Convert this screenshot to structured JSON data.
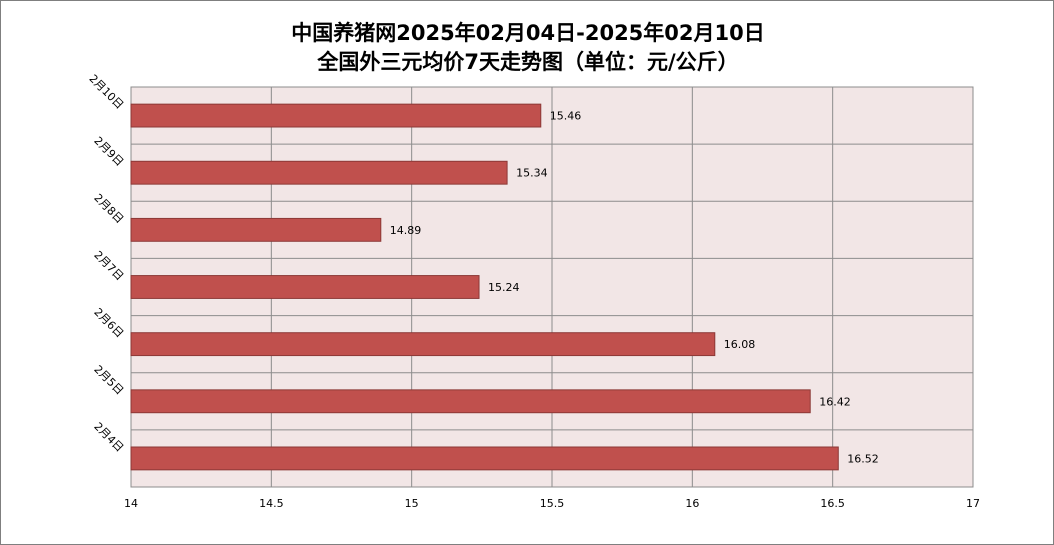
{
  "title_lines": [
    "中国养猪网2025年02月04日-2025年02月10日",
    "全国外三元均价7天走势图（单位：元/公斤）"
  ],
  "colors": {
    "bar_fill": "#C0504D",
    "bar_stroke": "#8C3836",
    "plot_bg": "#F2E6E6",
    "grid": "#8C8C8C"
  },
  "chart_data": {
    "type": "bar",
    "orientation": "horizontal",
    "title": "中国养猪网2025年02月04日-2025年02月10日 全国外三元均价7天走势图（单位：元/公斤）",
    "categories": [
      "2月10日",
      "2月9日",
      "2月8日",
      "2月7日",
      "2月6日",
      "2月5日",
      "2月4日"
    ],
    "values": [
      15.46,
      15.34,
      14.89,
      15.24,
      16.08,
      16.42,
      16.52
    ],
    "value_labels": [
      "15.46",
      "15.34",
      "14.89",
      "15.24",
      "16.08",
      "16.42",
      "16.52"
    ],
    "xlim": [
      14,
      17
    ],
    "x_ticks": [
      14,
      14.5,
      15,
      15.5,
      16,
      16.5,
      17
    ],
    "x_tick_labels": [
      "14",
      "14.5",
      "15",
      "15.5",
      "16",
      "16.5",
      "17"
    ],
    "grid": true,
    "legend": "none"
  }
}
